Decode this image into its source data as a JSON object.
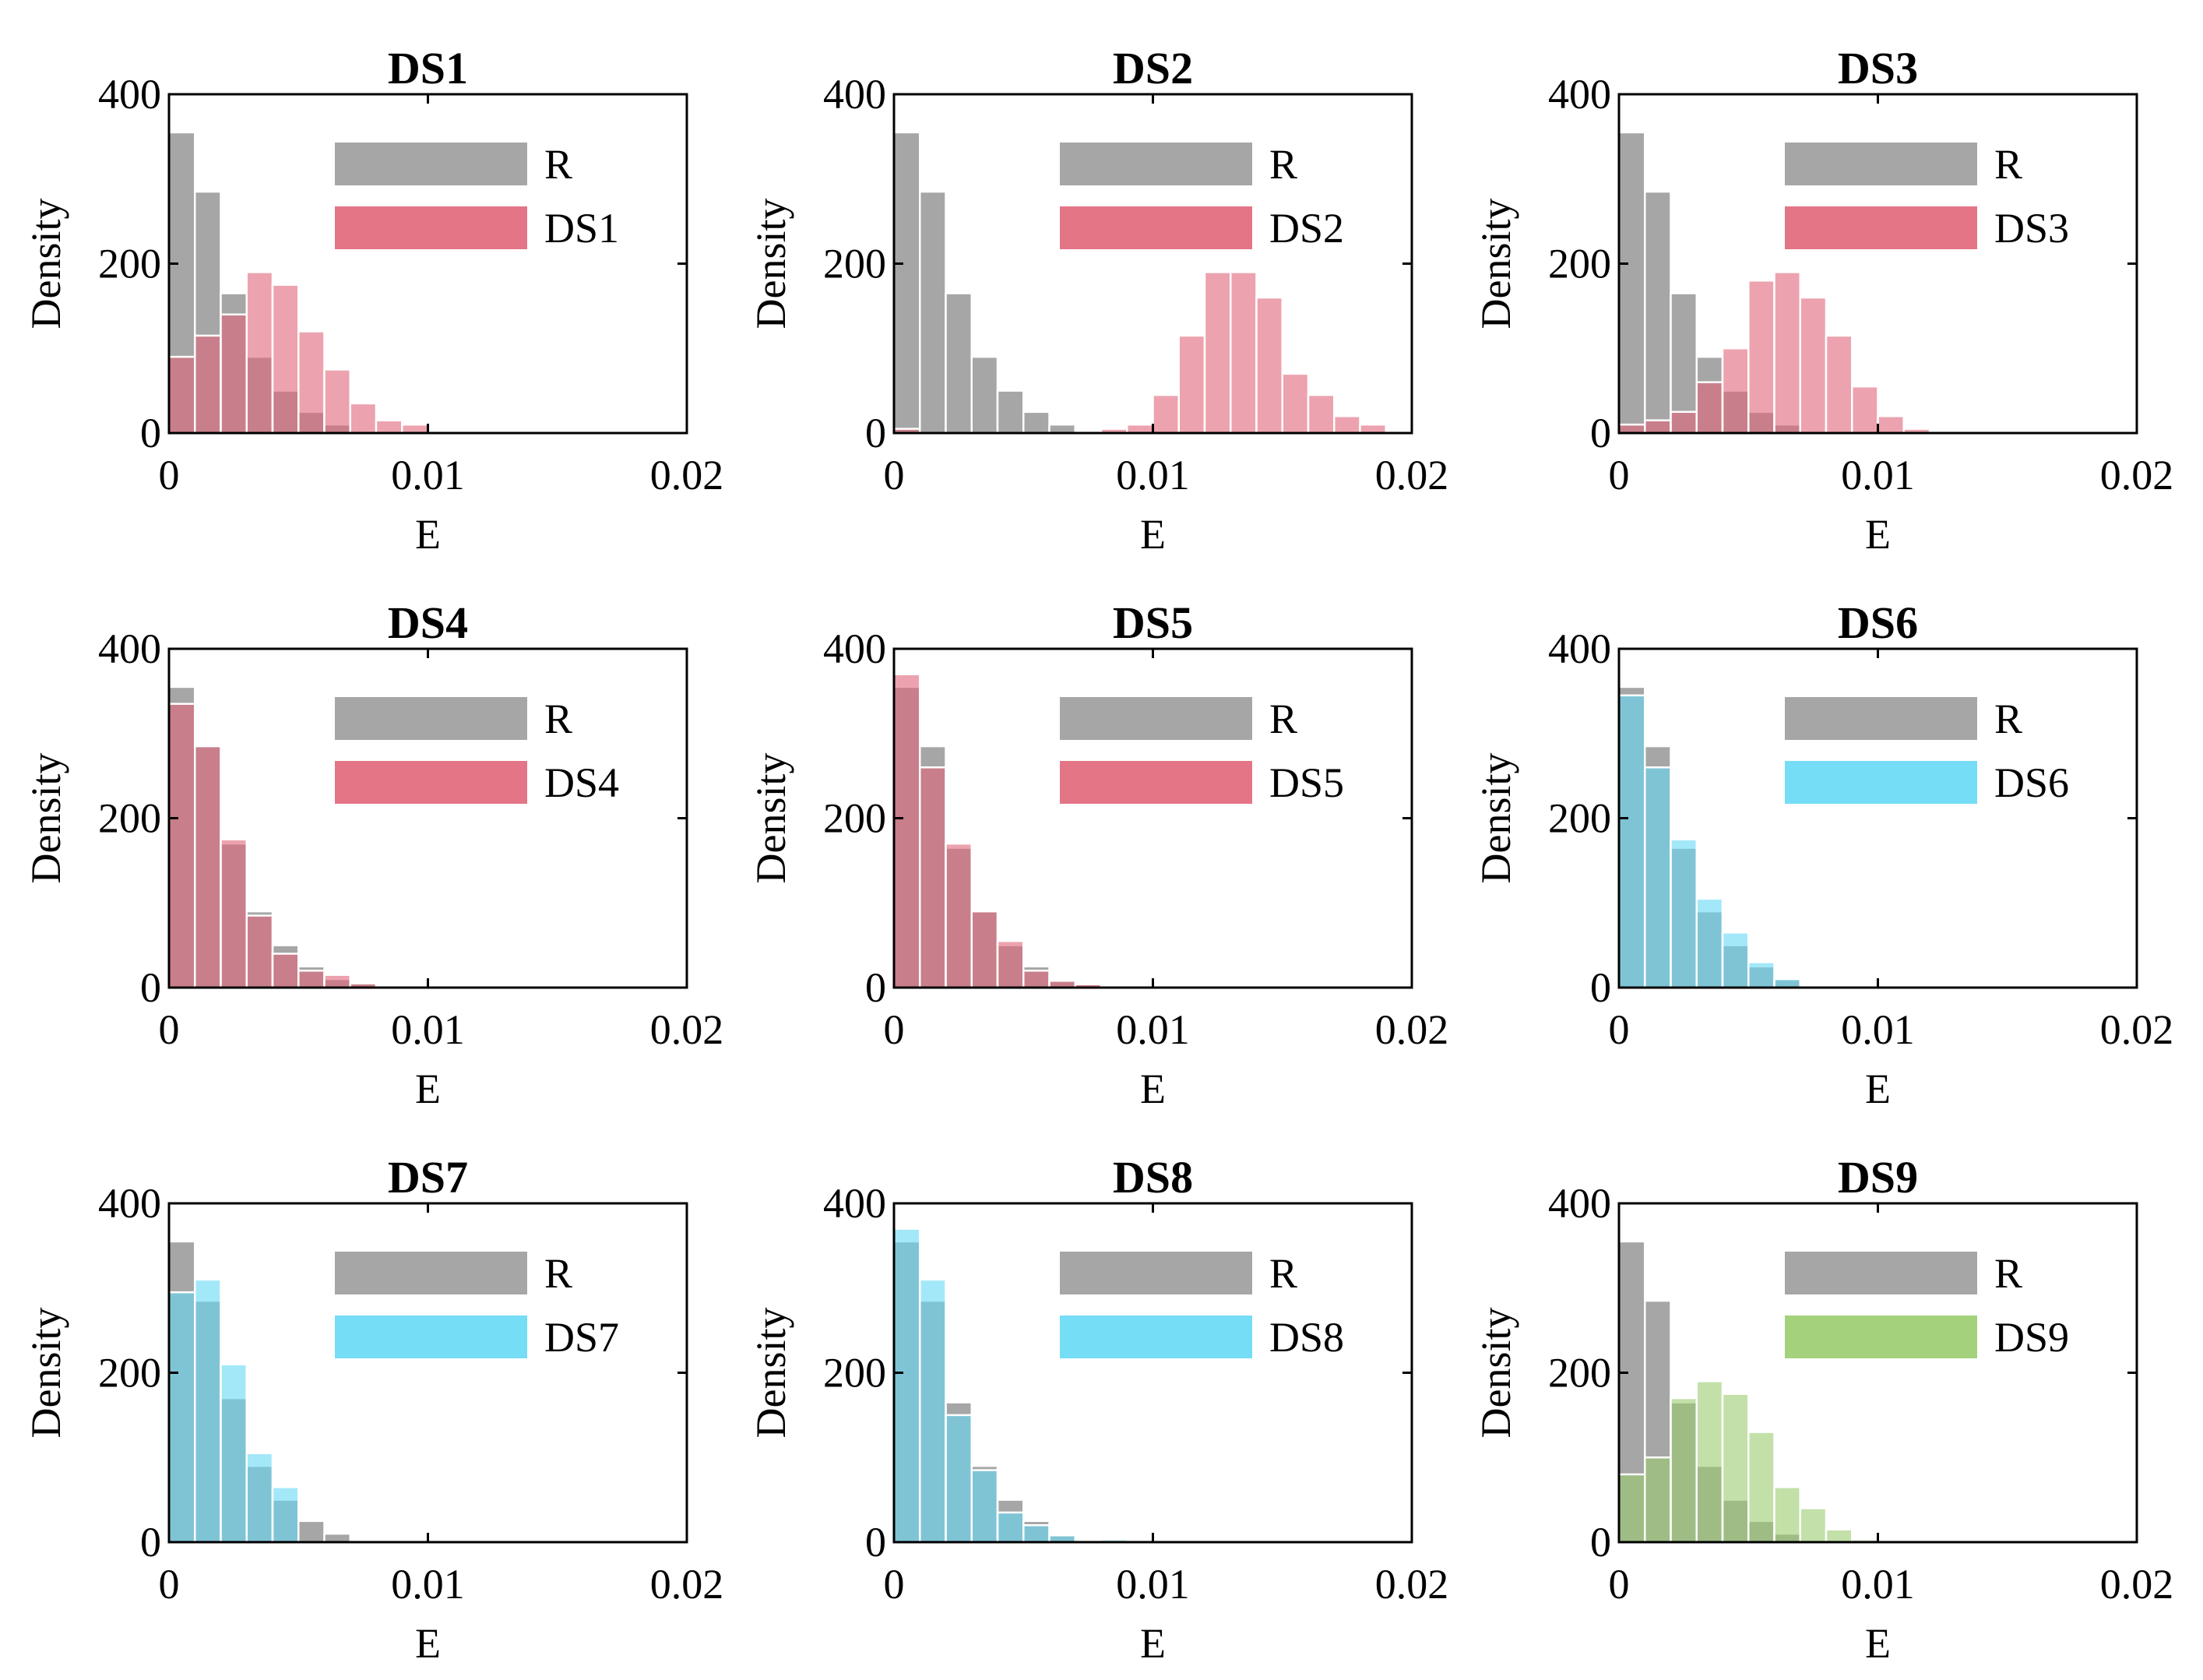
{
  "figure": {
    "colors": {
      "reference": "#A6A6A6",
      "red": "#E06679",
      "blue": "#66D9F5",
      "green": "#99CC6E",
      "axis": "#000000"
    }
  },
  "chart_data": [
    {
      "type": "bar",
      "title": "DS1",
      "xlabel": "E",
      "ylabel": "Density",
      "xlim": [
        0,
        0.02
      ],
      "ylim": [
        0,
        400
      ],
      "xticks": [
        0,
        0.01,
        0.02
      ],
      "xtick_labels": [
        "0",
        "0.01",
        "0.02"
      ],
      "yticks": [
        0,
        200,
        400
      ],
      "ytick_labels": [
        "0",
        "200",
        "400"
      ],
      "bin_width": 0.001,
      "bin_starts": [
        0,
        0.001,
        0.002,
        0.003,
        0.004,
        0.005,
        0.006,
        0.007,
        0.008,
        0.009,
        0.01
      ],
      "legend_position": "top-right",
      "series": [
        {
          "name": "R",
          "color": "#A6A6A6",
          "values": [
            355,
            285,
            165,
            90,
            50,
            25,
            10,
            0,
            0,
            0,
            0
          ]
        },
        {
          "name": "DS1",
          "color": "#E06679",
          "values": [
            90,
            115,
            140,
            190,
            175,
            120,
            75,
            35,
            15,
            10,
            0
          ]
        }
      ]
    },
    {
      "type": "bar",
      "title": "DS2",
      "xlabel": "E",
      "ylabel": "Density",
      "xlim": [
        0,
        0.02
      ],
      "ylim": [
        0,
        400
      ],
      "xticks": [
        0,
        0.01,
        0.02
      ],
      "xtick_labels": [
        "0",
        "0.01",
        "0.02"
      ],
      "yticks": [
        0,
        200,
        400
      ],
      "ytick_labels": [
        "0",
        "200",
        "400"
      ],
      "bin_width": 0.001,
      "bin_starts": [
        0,
        0.001,
        0.002,
        0.003,
        0.004,
        0.005,
        0.006,
        0.007,
        0.008,
        0.009,
        0.01,
        0.011,
        0.012,
        0.013,
        0.014,
        0.015,
        0.016,
        0.017,
        0.018
      ],
      "legend_position": "top-right",
      "series": [
        {
          "name": "R",
          "color": "#A6A6A6",
          "values": [
            355,
            285,
            165,
            90,
            50,
            25,
            10,
            0,
            0,
            0,
            0,
            0,
            0,
            0,
            0,
            0,
            0,
            0,
            0
          ]
        },
        {
          "name": "DS2",
          "color": "#E06679",
          "values": [
            5,
            0,
            0,
            0,
            0,
            0,
            0,
            0,
            5,
            10,
            45,
            115,
            190,
            190,
            160,
            70,
            45,
            20,
            10
          ]
        }
      ]
    },
    {
      "type": "bar",
      "title": "DS3",
      "xlabel": "E",
      "ylabel": "Density",
      "xlim": [
        0,
        0.02
      ],
      "ylim": [
        0,
        400
      ],
      "xticks": [
        0,
        0.01,
        0.02
      ],
      "xtick_labels": [
        "0",
        "0.01",
        "0.02"
      ],
      "yticks": [
        0,
        200,
        400
      ],
      "ytick_labels": [
        "0",
        "200",
        "400"
      ],
      "bin_width": 0.001,
      "bin_starts": [
        0,
        0.001,
        0.002,
        0.003,
        0.004,
        0.005,
        0.006,
        0.007,
        0.008,
        0.009,
        0.01,
        0.011
      ],
      "legend_position": "top-right",
      "series": [
        {
          "name": "R",
          "color": "#A6A6A6",
          "values": [
            355,
            285,
            165,
            90,
            50,
            25,
            10,
            0,
            0,
            0,
            0,
            0
          ]
        },
        {
          "name": "DS3",
          "color": "#E06679",
          "values": [
            10,
            15,
            25,
            60,
            100,
            180,
            190,
            160,
            115,
            55,
            20,
            5
          ]
        }
      ]
    },
    {
      "type": "bar",
      "title": "DS4",
      "xlabel": "E",
      "ylabel": "Density",
      "xlim": [
        0,
        0.02
      ],
      "ylim": [
        0,
        400
      ],
      "xticks": [
        0,
        0.01,
        0.02
      ],
      "xtick_labels": [
        "0",
        "0.01",
        "0.02"
      ],
      "yticks": [
        0,
        200,
        400
      ],
      "ytick_labels": [
        "0",
        "200",
        "400"
      ],
      "bin_width": 0.001,
      "bin_starts": [
        0,
        0.001,
        0.002,
        0.003,
        0.004,
        0.005,
        0.006,
        0.007,
        0.008,
        0.009
      ],
      "legend_position": "top-right",
      "series": [
        {
          "name": "R",
          "color": "#A6A6A6",
          "values": [
            355,
            285,
            170,
            90,
            50,
            25,
            10,
            5,
            0,
            0
          ]
        },
        {
          "name": "DS4",
          "color": "#E06679",
          "values": [
            335,
            285,
            175,
            85,
            40,
            20,
            15,
            5,
            2,
            2
          ]
        }
      ]
    },
    {
      "type": "bar",
      "title": "DS5",
      "xlabel": "E",
      "ylabel": "Density",
      "xlim": [
        0,
        0.02
      ],
      "ylim": [
        0,
        400
      ],
      "xticks": [
        0,
        0.01,
        0.02
      ],
      "xtick_labels": [
        "0",
        "0.01",
        "0.02"
      ],
      "yticks": [
        0,
        200,
        400
      ],
      "ytick_labels": [
        "0",
        "200",
        "400"
      ],
      "bin_width": 0.001,
      "bin_starts": [
        0,
        0.001,
        0.002,
        0.003,
        0.004,
        0.005,
        0.006,
        0.007,
        0.008,
        0.009
      ],
      "legend_position": "top-right",
      "series": [
        {
          "name": "R",
          "color": "#A6A6A6",
          "values": [
            355,
            285,
            165,
            90,
            50,
            25,
            10,
            5,
            2,
            0
          ]
        },
        {
          "name": "DS5",
          "color": "#E06679",
          "values": [
            370,
            260,
            170,
            90,
            55,
            20,
            8,
            4,
            2,
            1
          ]
        }
      ]
    },
    {
      "type": "bar",
      "title": "DS6",
      "xlabel": "E",
      "ylabel": "Density",
      "xlim": [
        0,
        0.02
      ],
      "ylim": [
        0,
        400
      ],
      "xticks": [
        0,
        0.01,
        0.02
      ],
      "xtick_labels": [
        "0",
        "0.01",
        "0.02"
      ],
      "yticks": [
        0,
        200,
        400
      ],
      "ytick_labels": [
        "0",
        "200",
        "400"
      ],
      "bin_width": 0.001,
      "bin_starts": [
        0,
        0.001,
        0.002,
        0.003,
        0.004,
        0.005,
        0.006
      ],
      "legend_position": "top-right",
      "series": [
        {
          "name": "R",
          "color": "#A6A6A6",
          "values": [
            355,
            285,
            165,
            90,
            50,
            25,
            10
          ]
        },
        {
          "name": "DS6",
          "color": "#66D9F5",
          "values": [
            345,
            260,
            175,
            105,
            65,
            30,
            10
          ]
        }
      ]
    },
    {
      "type": "bar",
      "title": "DS7",
      "xlabel": "E",
      "ylabel": "Density",
      "xlim": [
        0,
        0.02
      ],
      "ylim": [
        0,
        400
      ],
      "xticks": [
        0,
        0.01,
        0.02
      ],
      "xtick_labels": [
        "0",
        "0.01",
        "0.02"
      ],
      "yticks": [
        0,
        200,
        400
      ],
      "ytick_labels": [
        "0",
        "200",
        "400"
      ],
      "bin_width": 0.001,
      "bin_starts": [
        0,
        0.001,
        0.002,
        0.003,
        0.004,
        0.005,
        0.006
      ],
      "legend_position": "top-right",
      "series": [
        {
          "name": "R",
          "color": "#A6A6A6",
          "values": [
            355,
            285,
            170,
            90,
            50,
            25,
            10
          ]
        },
        {
          "name": "DS7",
          "color": "#66D9F5",
          "values": [
            295,
            310,
            210,
            105,
            65,
            0,
            0
          ]
        }
      ]
    },
    {
      "type": "bar",
      "title": "DS8",
      "xlabel": "E",
      "ylabel": "Density",
      "xlim": [
        0,
        0.02
      ],
      "ylim": [
        0,
        400
      ],
      "xticks": [
        0,
        0.01,
        0.02
      ],
      "xtick_labels": [
        "0",
        "0.01",
        "0.02"
      ],
      "yticks": [
        0,
        200,
        400
      ],
      "ytick_labels": [
        "0",
        "200",
        "400"
      ],
      "bin_width": 0.001,
      "bin_starts": [
        0,
        0.001,
        0.002,
        0.003,
        0.004,
        0.005,
        0.006,
        0.007,
        0.008
      ],
      "legend_position": "top-right",
      "series": [
        {
          "name": "R",
          "color": "#A6A6A6",
          "values": [
            355,
            285,
            165,
            90,
            50,
            25,
            10,
            0,
            0
          ]
        },
        {
          "name": "DS8",
          "color": "#66D9F5",
          "values": [
            370,
            310,
            150,
            85,
            35,
            20,
            8,
            0,
            3
          ]
        }
      ]
    },
    {
      "type": "bar",
      "title": "DS9",
      "xlabel": "E",
      "ylabel": "Density",
      "xlim": [
        0,
        0.02
      ],
      "ylim": [
        0,
        400
      ],
      "xticks": [
        0,
        0.01,
        0.02
      ],
      "xtick_labels": [
        "0",
        "0.01",
        "0.02"
      ],
      "yticks": [
        0,
        200,
        400
      ],
      "ytick_labels": [
        "0",
        "200",
        "400"
      ],
      "bin_width": 0.001,
      "bin_starts": [
        0,
        0.001,
        0.002,
        0.003,
        0.004,
        0.005,
        0.006,
        0.007,
        0.008,
        0.009
      ],
      "legend_position": "top-right",
      "series": [
        {
          "name": "R",
          "color": "#A6A6A6",
          "values": [
            355,
            285,
            165,
            90,
            50,
            25,
            10,
            0,
            0,
            0
          ]
        },
        {
          "name": "DS9",
          "color": "#99CC6E",
          "values": [
            80,
            100,
            170,
            190,
            175,
            130,
            65,
            40,
            15,
            3
          ]
        }
      ]
    }
  ]
}
